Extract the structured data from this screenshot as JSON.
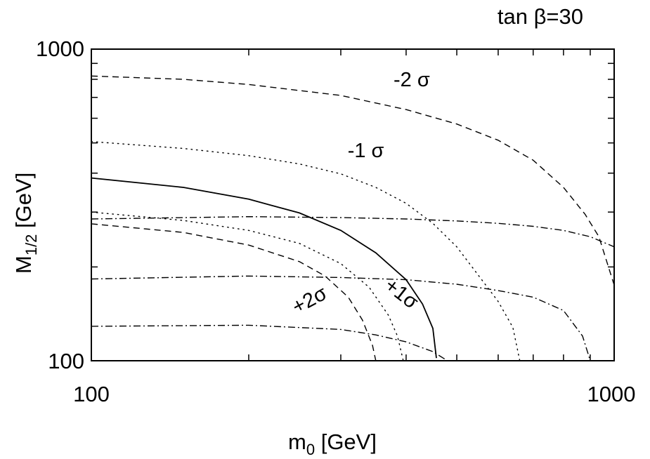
{
  "chart_data": {
    "type": "line",
    "title": "tan β=30",
    "xlabel": "m",
    "xlabel_sub": "0",
    "xlabel_unit": "[GeV]",
    "ylabel": "M",
    "ylabel_sub": "1/2",
    "ylabel_unit": "[GeV]",
    "xscale": "log",
    "yscale": "log",
    "xlim": [
      100,
      1000
    ],
    "ylim": [
      100,
      1000
    ],
    "x_ticks": [
      100,
      1000
    ],
    "x_tick_labels": [
      "100",
      "1000"
    ],
    "y_ticks": [
      100,
      1000
    ],
    "y_tick_labels": [
      "100",
      "1000"
    ],
    "grid": false,
    "series": [
      {
        "style": "dashed",
        "points": [
          [
            100,
            820
          ],
          [
            150,
            800
          ],
          [
            200,
            770
          ],
          [
            300,
            710
          ],
          [
            400,
            640
          ],
          [
            500,
            575
          ],
          [
            600,
            510
          ],
          [
            700,
            440
          ],
          [
            800,
            360
          ],
          [
            880,
            295
          ],
          [
            935,
            250
          ],
          [
            1000,
            175
          ]
        ]
      },
      {
        "style": "dotted",
        "points": [
          [
            100,
            505
          ],
          [
            150,
            480
          ],
          [
            200,
            455
          ],
          [
            250,
            428
          ],
          [
            300,
            398
          ],
          [
            350,
            360
          ],
          [
            400,
            320
          ],
          [
            450,
            276
          ],
          [
            500,
            232
          ],
          [
            550,
            188
          ],
          [
            600,
            155
          ],
          [
            640,
            128
          ],
          [
            660,
            100
          ]
        ]
      },
      {
        "style": "solid",
        "points": [
          [
            100,
            386
          ],
          [
            150,
            360
          ],
          [
            200,
            330
          ],
          [
            250,
            298
          ],
          [
            300,
            262
          ],
          [
            350,
            222
          ],
          [
            400,
            182
          ],
          [
            430,
            152
          ],
          [
            450,
            127
          ],
          [
            457,
            102
          ]
        ]
      },
      {
        "style": "dotted",
        "points": [
          [
            100,
            300
          ],
          [
            150,
            282
          ],
          [
            200,
            262
          ],
          [
            250,
            238
          ],
          [
            300,
            205
          ],
          [
            340,
            172
          ],
          [
            370,
            140
          ],
          [
            385,
            120
          ],
          [
            395,
            100
          ]
        ]
      },
      {
        "style": "dashed",
        "points": [
          [
            100,
            275
          ],
          [
            150,
            258
          ],
          [
            200,
            235
          ],
          [
            250,
            208
          ],
          [
            280,
            187
          ],
          [
            310,
            160
          ],
          [
            330,
            135
          ],
          [
            345,
            112
          ],
          [
            350,
            100
          ]
        ]
      },
      {
        "style": "dash-dot",
        "points": [
          [
            100,
            285
          ],
          [
            200,
            290
          ],
          [
            300,
            288
          ],
          [
            400,
            285
          ],
          [
            500,
            281
          ],
          [
            600,
            276
          ],
          [
            700,
            270
          ],
          [
            800,
            262
          ],
          [
            900,
            250
          ],
          [
            1000,
            232
          ]
        ]
      },
      {
        "style": "dash-dot",
        "points": [
          [
            100,
            183
          ],
          [
            200,
            187
          ],
          [
            300,
            185
          ],
          [
            400,
            182
          ],
          [
            500,
            176
          ],
          [
            600,
            168
          ],
          [
            700,
            160
          ],
          [
            800,
            145
          ],
          [
            870,
            120
          ],
          [
            900,
            100
          ]
        ]
      },
      {
        "style": "dash-dot",
        "points": [
          [
            100,
            129
          ],
          [
            200,
            130
          ],
          [
            300,
            126
          ],
          [
            350,
            121
          ],
          [
            400,
            115
          ],
          [
            450,
            107
          ],
          [
            480,
            100
          ]
        ]
      }
    ],
    "annotations": [
      {
        "text": "-2 σ",
        "x": 410,
        "y": 760,
        "rotation": 0
      },
      {
        "text": "-1 σ",
        "x": 335,
        "y": 450,
        "rotation": 0
      },
      {
        "text": "+1σ",
        "x": 385,
        "y": 158,
        "rotation": 38
      },
      {
        "text": "+2σ",
        "x": 265,
        "y": 150,
        "rotation": -28
      }
    ]
  }
}
